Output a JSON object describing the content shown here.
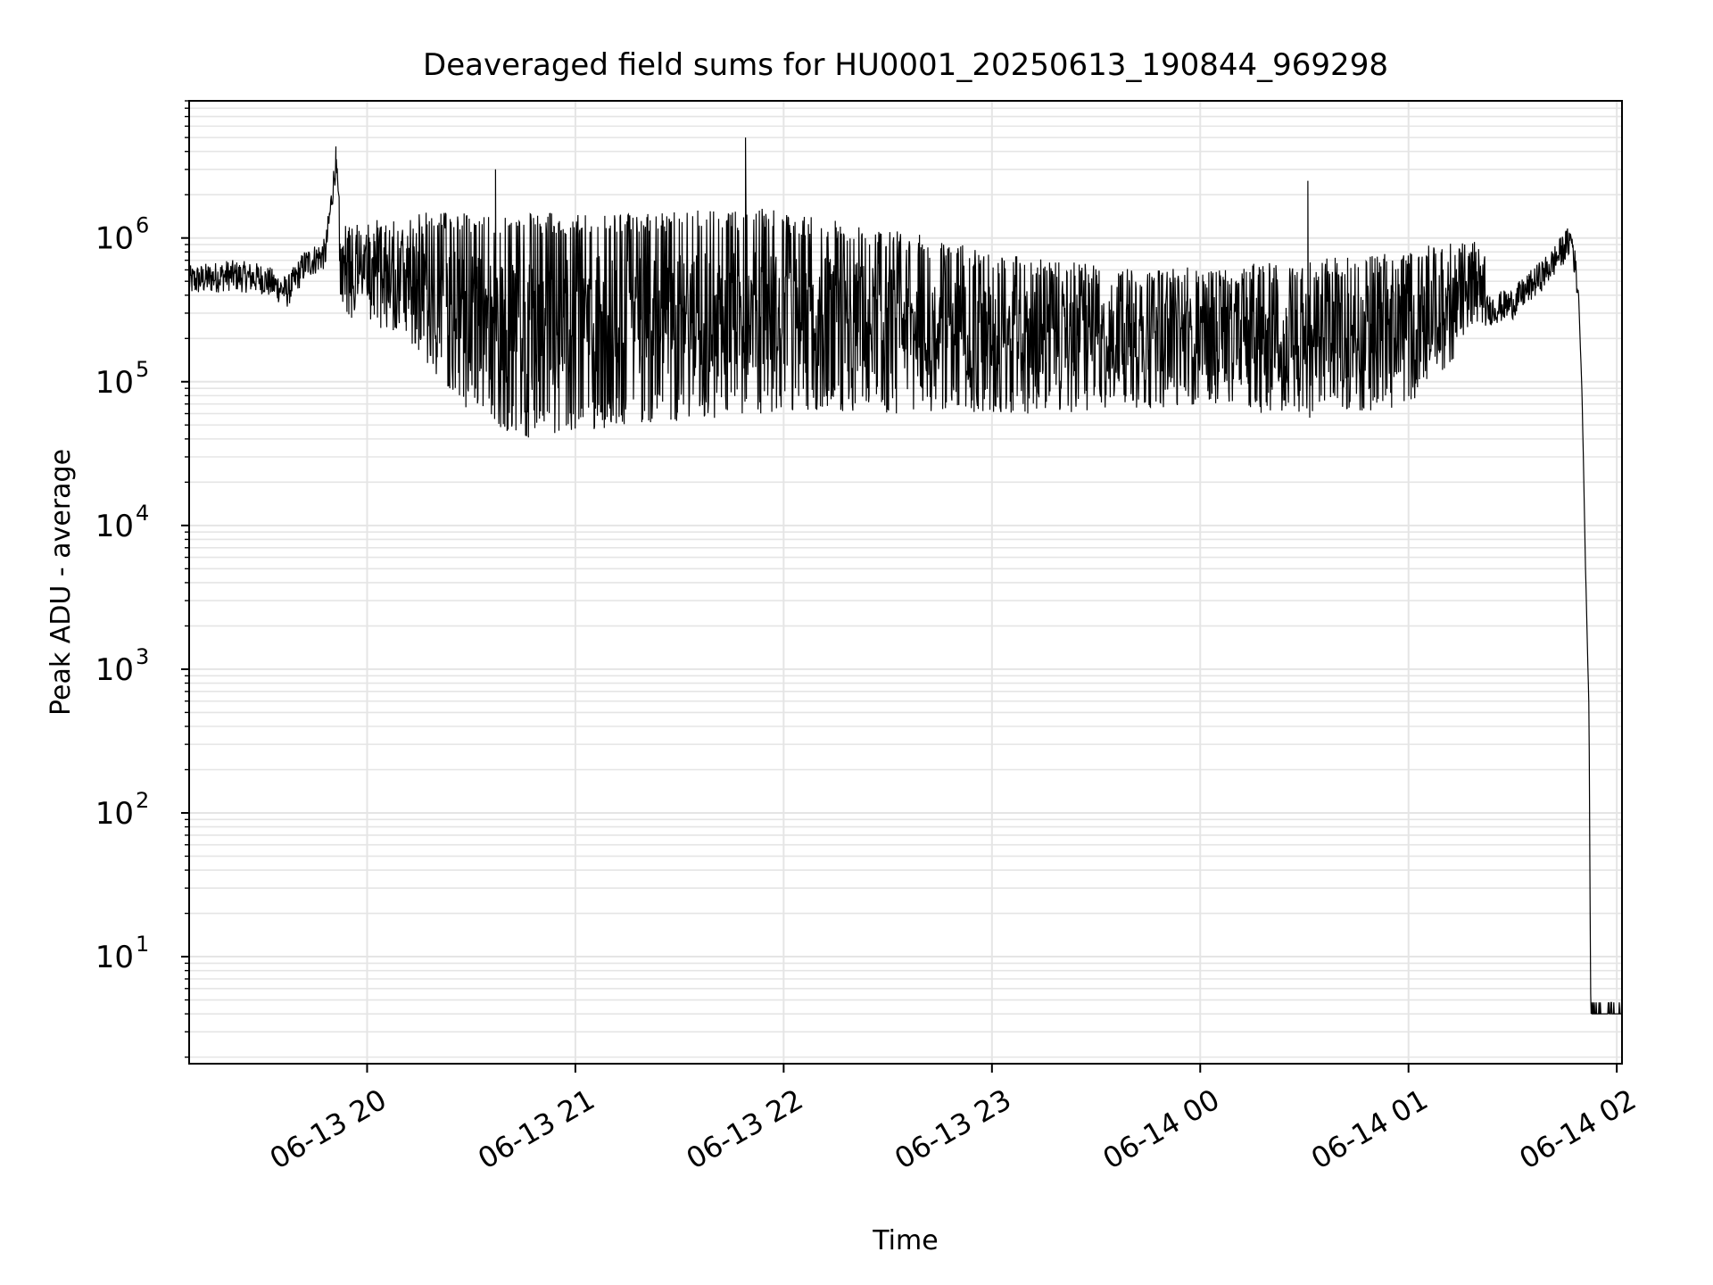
{
  "chart_data": {
    "type": "line",
    "title": "Deaveraged field sums for HU0001_20250613_190844_969298",
    "xlabel": "Time",
    "ylabel": "Peak ADU - average",
    "yscale": "log",
    "ylim": [
      1.8,
      9000000
    ],
    "xlim": [
      "2025-06-13 19:08:44",
      "2025-06-14 02:01:30"
    ],
    "grid": true,
    "line_color": "#000000",
    "grid_color": "#e5e5e5",
    "x_ticks": [
      {
        "time": "2025-06-13 20:00",
        "label": "06-13 20"
      },
      {
        "time": "2025-06-13 21:00",
        "label": "06-13 21"
      },
      {
        "time": "2025-06-13 22:00",
        "label": "06-13 22"
      },
      {
        "time": "2025-06-13 23:00",
        "label": "06-13 23"
      },
      {
        "time": "2025-06-14 00:00",
        "label": "06-14 00"
      },
      {
        "time": "2025-06-14 01:00",
        "label": "06-14 01"
      },
      {
        "time": "2025-06-14 02:00",
        "label": "06-14 02"
      }
    ],
    "y_ticks": [
      {
        "value": 10,
        "base": "10",
        "exp": "1"
      },
      {
        "value": 100,
        "base": "10",
        "exp": "2"
      },
      {
        "value": 1000,
        "base": "10",
        "exp": "3"
      },
      {
        "value": 10000,
        "base": "10",
        "exp": "4"
      },
      {
        "value": 100000,
        "base": "10",
        "exp": "5"
      },
      {
        "value": 1000000,
        "base": "10",
        "exp": "6"
      }
    ],
    "series": [
      {
        "points": [
          {
            "t": "2025-06-13 19:08:44",
            "y": 500000
          },
          {
            "t": "2025-06-13 19:20",
            "y": 550000
          },
          {
            "t": "2025-06-13 19:30",
            "y": 520000
          },
          {
            "t": "2025-06-13 19:37",
            "y": 420000
          },
          {
            "t": "2025-06-13 19:42",
            "y": 650000
          },
          {
            "t": "2025-06-13 19:48",
            "y": 780000
          },
          {
            "t": "2025-06-13 19:51",
            "y": 3400000
          },
          {
            "t": "2025-06-13 19:53",
            "y": 600000
          },
          {
            "t": "2025-06-13 19:58",
            "y": 250000
          },
          {
            "t": "2025-06-13 20:05",
            "y": 400000
          },
          {
            "t": "2025-06-13 20:20",
            "y": 100000
          },
          {
            "t": "2025-06-13 20:30",
            "y": 60000
          },
          {
            "t": "2025-06-13 20:34",
            "y": 50000
          },
          {
            "t": "2025-06-13 20:37",
            "y": 3000000
          },
          {
            "t": "2025-06-13 20:45",
            "y": 35000
          },
          {
            "t": "2025-06-13 21:00",
            "y": 40000
          },
          {
            "t": "2025-06-13 21:30",
            "y": 55000
          },
          {
            "t": "2025-06-13 21:49",
            "y": 5000000
          },
          {
            "t": "2025-06-13 22:00",
            "y": 60000
          },
          {
            "t": "2025-06-13 22:30",
            "y": 50000
          },
          {
            "t": "2025-06-13 23:00",
            "y": 55000
          },
          {
            "t": "2025-06-13 23:30",
            "y": 60000
          },
          {
            "t": "2025-06-14 00:00",
            "y": 65000
          },
          {
            "t": "2025-06-14 00:30",
            "y": 50000
          },
          {
            "t": "2025-06-14 00:31",
            "y": 2500000
          },
          {
            "t": "2025-06-14 00:45",
            "y": 60000
          },
          {
            "t": "2025-06-14 01:00",
            "y": 65000
          },
          {
            "t": "2025-06-14 01:10",
            "y": 90000
          },
          {
            "t": "2025-06-14 01:20",
            "y": 300000
          },
          {
            "t": "2025-06-14 01:30",
            "y": 350000
          },
          {
            "t": "2025-06-14 01:40",
            "y": 600000
          },
          {
            "t": "2025-06-14 01:47",
            "y": 1000000
          },
          {
            "t": "2025-06-14 01:49",
            "y": 400000
          },
          {
            "t": "2025-06-14 01:50",
            "y": 80000
          },
          {
            "t": "2025-06-14 01:51",
            "y": 5000
          },
          {
            "t": "2025-06-14 01:52",
            "y": 500
          },
          {
            "t": "2025-06-14 01:52:30",
            "y": 4
          }
        ],
        "burst_region": {
          "start": "2025-06-13 19:52",
          "end": "2025-06-14 01:22",
          "high": [
            {
              "t": "2025-06-13 19:52",
              "y": 1200000
            },
            {
              "t": "2025-06-13 20:15",
              "y": 1500000
            },
            {
              "t": "2025-06-13 21:00",
              "y": 1500000
            },
            {
              "t": "2025-06-13 21:55",
              "y": 1600000
            },
            {
              "t": "2025-06-13 22:30",
              "y": 1200000
            },
            {
              "t": "2025-06-13 23:00",
              "y": 800000
            },
            {
              "t": "2025-06-13 23:45",
              "y": 600000
            },
            {
              "t": "2025-06-14 00:30",
              "y": 700000
            },
            {
              "t": "2025-06-14 01:22",
              "y": 1000000
            }
          ],
          "low": [
            {
              "t": "2025-06-13 19:52",
              "y": 300000
            },
            {
              "t": "2025-06-13 20:10",
              "y": 200000
            },
            {
              "t": "2025-06-13 20:30",
              "y": 60000
            },
            {
              "t": "2025-06-13 20:45",
              "y": 40000
            },
            {
              "t": "2025-06-13 21:15",
              "y": 50000
            },
            {
              "t": "2025-06-13 22:00",
              "y": 60000
            },
            {
              "t": "2025-06-13 23:00",
              "y": 60000
            },
            {
              "t": "2025-06-13 23:30",
              "y": 60000
            },
            {
              "t": "2025-06-14 00:00",
              "y": 70000
            },
            {
              "t": "2025-06-14 00:30",
              "y": 55000
            },
            {
              "t": "2025-06-14 01:00",
              "y": 65000
            },
            {
              "t": "2025-06-14 01:22",
              "y": 250000
            }
          ]
        }
      }
    ]
  }
}
